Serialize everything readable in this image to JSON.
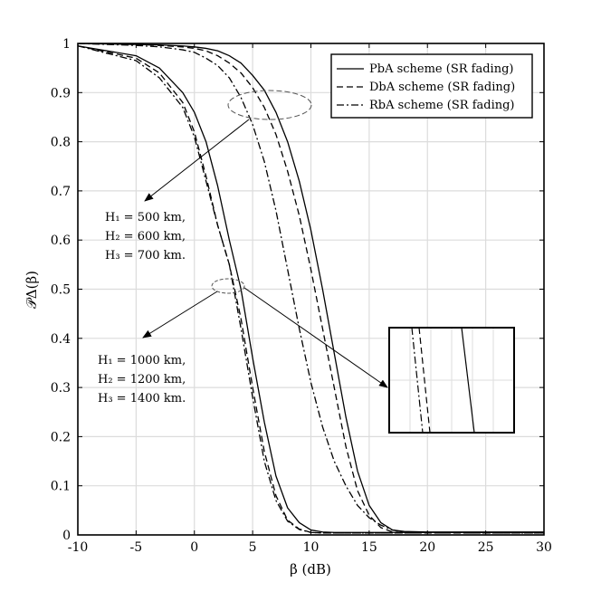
{
  "chart_data": {
    "type": "line",
    "xlabel": "β (dB)",
    "ylabel": "𝒫Δ(β)",
    "xlim": [
      -10,
      30
    ],
    "ylim": [
      0,
      1
    ],
    "xticks": [
      "-10",
      "-5",
      "0",
      "5",
      "10",
      "15",
      "20",
      "25",
      "30"
    ],
    "yticks": [
      "0",
      "0.1",
      "0.2",
      "0.3",
      "0.4",
      "0.5",
      "0.6",
      "0.7",
      "0.8",
      "0.9",
      "1"
    ],
    "grid": true,
    "legend_position": "top-right",
    "x": [
      -10,
      -5,
      -3,
      -1,
      0,
      1,
      2,
      3,
      4,
      5,
      6,
      7,
      8,
      9,
      10,
      11,
      12,
      13,
      14,
      15,
      16,
      17,
      18,
      20,
      25,
      30
    ],
    "series": [
      {
        "name": "PbA scheme (SR fading)",
        "dash": "solid",
        "group": "H1=500 km",
        "values": [
          1.0,
          0.998,
          0.997,
          0.995,
          0.993,
          0.99,
          0.985,
          0.975,
          0.96,
          0.935,
          0.905,
          0.86,
          0.8,
          0.72,
          0.62,
          0.5,
          0.37,
          0.24,
          0.13,
          0.06,
          0.025,
          0.01,
          0.007,
          0.006,
          0.006,
          0.006
        ]
      },
      {
        "name": "DbA scheme (SR fading)",
        "dash": "dash",
        "group": "H1=500 km",
        "values": [
          1.0,
          0.998,
          0.996,
          0.993,
          0.99,
          0.985,
          0.975,
          0.96,
          0.94,
          0.91,
          0.87,
          0.815,
          0.74,
          0.65,
          0.54,
          0.42,
          0.3,
          0.18,
          0.09,
          0.04,
          0.015,
          0.006,
          0.005,
          0.005,
          0.005,
          0.005
        ]
      },
      {
        "name": "RbA scheme (SR fading)",
        "dash": "dashdot",
        "group": "H1=500 km",
        "values": [
          1.0,
          0.996,
          0.993,
          0.987,
          0.982,
          0.97,
          0.955,
          0.93,
          0.89,
          0.835,
          0.76,
          0.66,
          0.54,
          0.42,
          0.31,
          0.22,
          0.15,
          0.1,
          0.06,
          0.035,
          0.02,
          0.01,
          0.006,
          0.005,
          0.005,
          0.005
        ]
      },
      {
        "name": "PbA scheme (SR fading)",
        "dash": "solid",
        "group": "H1=1000 km",
        "values": [
          0.995,
          0.975,
          0.95,
          0.9,
          0.86,
          0.8,
          0.71,
          0.6,
          0.5,
          0.36,
          0.23,
          0.12,
          0.055,
          0.025,
          0.01,
          0.006,
          0.005,
          0.005,
          0.005,
          0.005,
          0.005,
          0.005,
          0.005,
          0.005,
          0.005,
          0.005
        ]
      },
      {
        "name": "DbA scheme (SR fading)",
        "dash": "dash",
        "group": "H1=1000 km",
        "values": [
          0.995,
          0.97,
          0.94,
          0.88,
          0.82,
          0.73,
          0.63,
          0.55,
          0.44,
          0.3,
          0.17,
          0.08,
          0.03,
          0.012,
          0.005,
          0.004,
          0.004,
          0.004,
          0.004,
          0.004,
          0.004,
          0.004,
          0.004,
          0.004,
          0.004,
          0.004
        ]
      },
      {
        "name": "RbA scheme (SR fading)",
        "dash": "dashdot",
        "group": "H1=1000 km",
        "values": [
          0.995,
          0.965,
          0.93,
          0.87,
          0.81,
          0.72,
          0.63,
          0.55,
          0.42,
          0.28,
          0.15,
          0.07,
          0.028,
          0.011,
          0.005,
          0.004,
          0.004,
          0.004,
          0.004,
          0.004,
          0.004,
          0.004,
          0.004,
          0.004,
          0.004,
          0.004
        ]
      }
    ],
    "annotations": {
      "group1": [
        "H₁ = 500 km,",
        "H₂ = 600 km,",
        "H₃ = 700 km."
      ],
      "group2": [
        "H₁ = 1000 km,",
        "H₂ = 1200 km,",
        "H₃ = 1400 km."
      ]
    }
  }
}
